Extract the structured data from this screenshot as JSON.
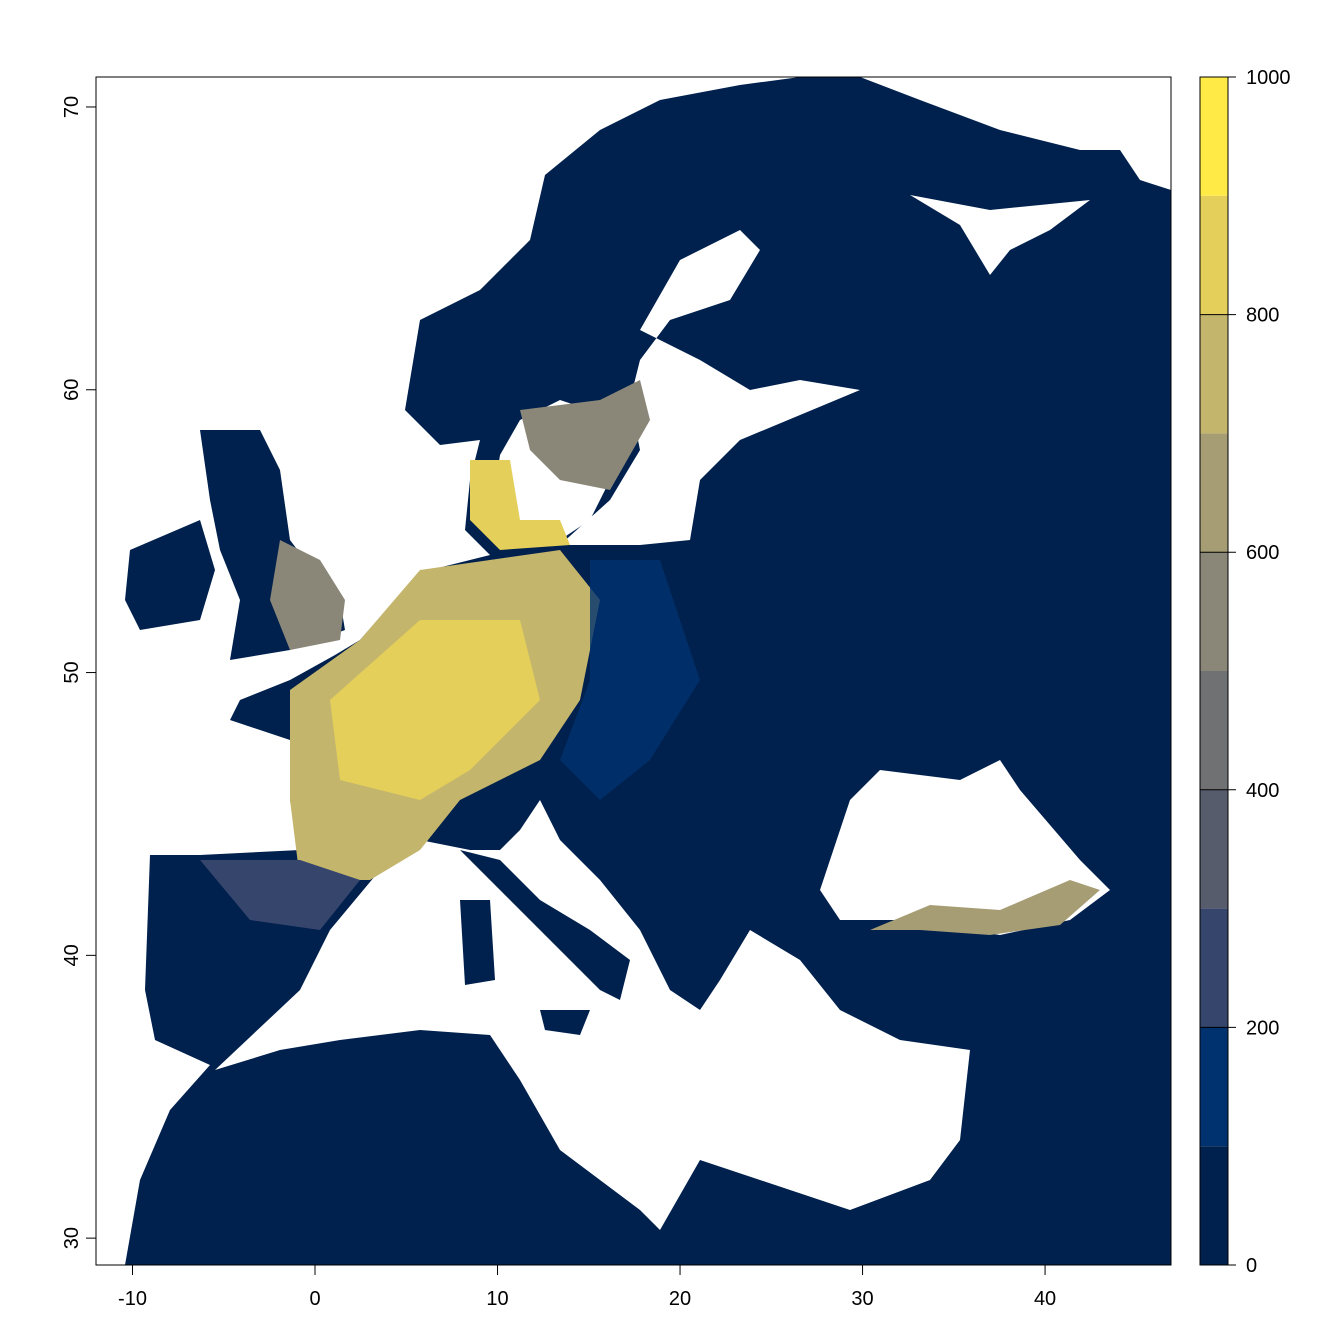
{
  "chart_data": {
    "type": "raster",
    "xlim": [
      -12,
      46.9
    ],
    "ylim": [
      29.05,
      71.06
    ],
    "xticks": [
      -10,
      0,
      10,
      20,
      30,
      40
    ],
    "yticks": [
      30,
      40,
      50,
      60,
      70
    ],
    "colorbar": {
      "lim": [
        0,
        1000
      ],
      "ticks": [
        0,
        200,
        400,
        600,
        800,
        1000
      ],
      "colors": [
        "#00204d",
        "#00326f",
        "#35456c",
        "#575c6d",
        "#707173",
        "#8a8779",
        "#a69d75",
        "#c4b56c",
        "#e4cf5b",
        "#ffea46"
      ]
    }
  }
}
